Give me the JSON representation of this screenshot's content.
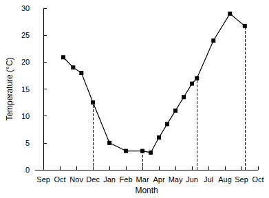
{
  "chart_data": {
    "type": "line",
    "x_label": "Month",
    "y_label": "Temperature (°C)",
    "x": [
      1.2,
      1.8,
      2.3,
      3.0,
      4.0,
      5.0,
      6.0,
      6.5,
      7.0,
      7.5,
      8.0,
      8.5,
      9.0,
      9.3,
      10.3,
      11.3,
      12.2
    ],
    "values": [
      20.9,
      19,
      18,
      12.5,
      5,
      3.5,
      3.5,
      3.2,
      6,
      8.5,
      11,
      13.5,
      16,
      17,
      24,
      29,
      26.7
    ],
    "dividers": [
      3.0,
      6.0,
      9.3,
      12.2
    ],
    "color": "#000000",
    "marker": "square",
    "line_style": "solid",
    "grid": false,
    "xlim": [
      -0.5,
      13
    ],
    "xticks": [
      {
        "value": 0,
        "label": "Sep"
      },
      {
        "value": 1,
        "label": "Oct"
      },
      {
        "value": 2,
        "label": "Nov"
      },
      {
        "value": 3,
        "label": "Dec"
      },
      {
        "value": 4,
        "label": "Jan"
      },
      {
        "value": 5,
        "label": "Feb"
      },
      {
        "value": 6,
        "label": "Mar"
      },
      {
        "value": 7,
        "label": "Apr"
      },
      {
        "value": 8,
        "label": "May"
      },
      {
        "value": 9,
        "label": "Jun"
      },
      {
        "value": 10,
        "label": "Jul"
      },
      {
        "value": 11,
        "label": "Aug"
      },
      {
        "value": 12,
        "label": "Sep"
      },
      {
        "value": 13,
        "label": "Oct"
      }
    ],
    "ylim": [
      0,
      30
    ],
    "yticks": [
      0,
      5,
      10,
      15,
      20,
      25,
      30
    ]
  }
}
